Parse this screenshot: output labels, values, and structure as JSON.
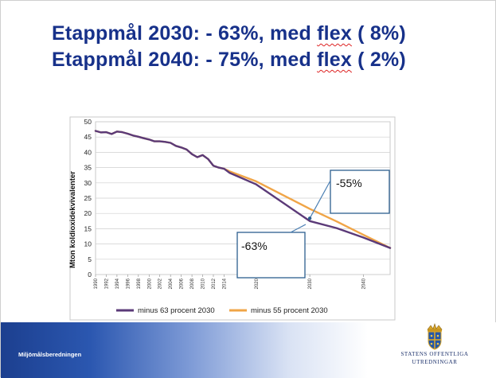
{
  "slide": {
    "title_line1_a": "Etappmål 2030: - 63%, med ",
    "title_line1_flex": "flex",
    "title_line1_b": " ( 8%)",
    "title_line2_a": "Etappmål 2040: - 75%, med ",
    "title_line2_flex": "flex",
    "title_line2_b": " ( 2%)",
    "footer_label": "Miljömålsberedningen",
    "logo_line1": "STATENS OFFENTLIGA",
    "logo_line2": "UTREDNINGAR",
    "title_color": "#17318a",
    "spellcheck_underline_color": "#dd2222"
  },
  "chart_data": {
    "type": "line",
    "ylabel": "Mton koldioxidekvivalenter",
    "ylim": [
      0,
      50
    ],
    "yticks": [
      0,
      5,
      10,
      15,
      20,
      25,
      30,
      35,
      40,
      45,
      50
    ],
    "xlim": [
      1990,
      2045
    ],
    "xticks": [
      "1990",
      "1992",
      "1994",
      "1996",
      "1998",
      "2000",
      "2002",
      "2004",
      "2006",
      "2008",
      "2010",
      "2012",
      "2014",
      "2020",
      "2030",
      "2040"
    ],
    "grid": true,
    "legend_position": "bottom",
    "series": [
      {
        "name": "minus 63 procent 2030",
        "color": "#5b3a78",
        "x": [
          1990,
          1991,
          1992,
          1993,
          1994,
          1995,
          1996,
          1997,
          1998,
          1999,
          2000,
          2001,
          2002,
          2003,
          2004,
          2005,
          2006,
          2007,
          2008,
          2009,
          2010,
          2011,
          2012,
          2013,
          2014,
          2015,
          2020,
          2030,
          2035,
          2040,
          2045
        ],
        "y": [
          47,
          46.5,
          46.6,
          46,
          46.8,
          46.6,
          46.1,
          45.5,
          45.1,
          44.6,
          44.2,
          43.6,
          43.6,
          43.4,
          43.1,
          42.1,
          41.6,
          40.9,
          39.4,
          38.4,
          39.1,
          37.8,
          35.6,
          35,
          34.6,
          33.3,
          29.5,
          17.5,
          15.2,
          12.1,
          8.7
        ]
      },
      {
        "name": "minus 55 procent 2030",
        "color": "#f0a547",
        "x": [
          1990,
          1991,
          1992,
          1993,
          1994,
          1995,
          1996,
          1997,
          1998,
          1999,
          2000,
          2001,
          2002,
          2003,
          2004,
          2005,
          2006,
          2007,
          2008,
          2009,
          2010,
          2011,
          2012,
          2013,
          2014,
          2015,
          2020,
          2030,
          2035,
          2040,
          2045
        ],
        "y": [
          47,
          46.5,
          46.6,
          46,
          46.8,
          46.6,
          46.1,
          45.5,
          45.1,
          44.6,
          44.2,
          43.6,
          43.6,
          43.4,
          43.1,
          42.1,
          41.6,
          40.9,
          39.4,
          38.4,
          39.1,
          37.8,
          35.6,
          35,
          34.6,
          33.8,
          30.5,
          21.5,
          17.4,
          13,
          8.7
        ]
      }
    ],
    "annotations": [
      {
        "text": "-55%",
        "target_x": 2030,
        "target_y": 18.4
      },
      {
        "text": "-63%",
        "target_x": 2029,
        "target_y": 14.8
      }
    ]
  }
}
